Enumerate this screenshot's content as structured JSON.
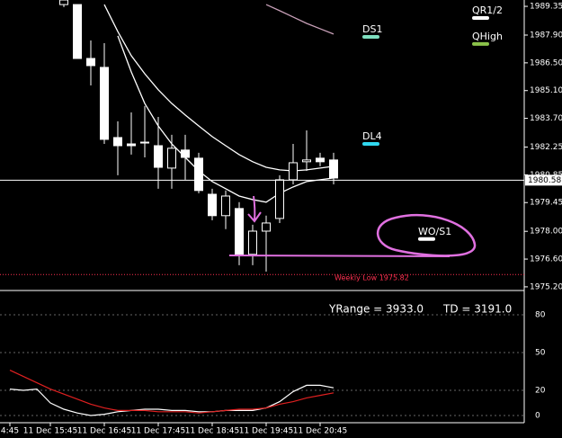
{
  "chart_data": [
    {
      "type": "candlestick",
      "open": [
        null,
        null,
        null,
        null,
        1989.44,
        1989.44,
        1986.72,
        1986.27,
        1982.73,
        1982.41,
        1982.5,
        1982.32,
        1981.19,
        1982.1,
        1981.69,
        1979.87,
        1978.79,
        1979.15,
        1976.84,
        1978.01,
        1978.65,
        1980.6,
        1981.51,
        1981.69,
        1981.6
      ],
      "high": [
        null,
        null,
        null,
        null,
        1989.67,
        1989.44,
        1987.63,
        1987.49,
        1983.55,
        1984.0,
        1984.32,
        1983.77,
        1982.87,
        1982.87,
        1981.96,
        1980.15,
        1980.06,
        1979.47,
        1978.33,
        1978.79,
        1980.83,
        1982.41,
        1983.09,
        1981.96,
        1981.96
      ],
      "low": [
        null,
        null,
        null,
        null,
        1989.31,
        1986.72,
        1985.36,
        1982.41,
        1980.83,
        1981.87,
        1981.73,
        1980.15,
        1980.15,
        1980.6,
        1979.92,
        1978.56,
        1978.11,
        1976.29,
        1976.29,
        1975.97,
        1978.42,
        1980.37,
        1981.05,
        1981.28,
        1980.37
      ],
      "close": [
        null,
        null,
        null,
        null,
        1989.67,
        1986.72,
        1986.36,
        1982.64,
        1982.32,
        1982.32,
        1982.46,
        1981.23,
        1982.19,
        1981.73,
        1980.06,
        1978.79,
        1979.78,
        1976.84,
        1978.01,
        1978.42,
        1980.6,
        1981.46,
        1981.6,
        1981.51,
        1980.69
      ],
      "series": [
        {
          "color": "#ffffff",
          "values": [
            null,
            null,
            null,
            null,
            null,
            null,
            null,
            1989.44,
            1988.08,
            1986.86,
            1985.95,
            1985.14,
            1984.45,
            1983.87,
            1983.32,
            1982.78,
            1982.32,
            1981.87,
            1981.51,
            1981.23,
            1981.1,
            1981.05,
            1981.1,
            1981.19,
            1981.28
          ]
        },
        {
          "color": "#ffffff",
          "values": [
            null,
            null,
            null,
            null,
            null,
            null,
            null,
            null,
            1987.86,
            1986.04,
            1984.45,
            1983.32,
            1982.41,
            1981.73,
            1981.05,
            1980.51,
            1980.15,
            1979.78,
            1979.6,
            1979.47,
            1979.92,
            1980.24,
            1980.51,
            1980.6,
            1980.69
          ]
        },
        {
          "color": "#c8a0b8",
          "values": [
            null,
            null,
            null,
            null,
            null,
            null,
            null,
            null,
            null,
            null,
            null,
            null,
            null,
            null,
            null,
            null,
            null,
            null,
            null,
            1989.44,
            1989.13,
            1988.81,
            1988.49,
            1988.22,
            1987.95
          ]
        }
      ],
      "ylim": [
        1975.06,
        1989.67
      ],
      "yticks": [
        1989.35,
        {
          "value": 1987.9,
          "label": "1987.90"
        },
        {
          "value": 1986.5,
          "label": "1986.50"
        },
        {
          "value": 1985.1,
          "label": "1985.10"
        },
        {
          "value": 1983.7,
          "label": "1983.70"
        },
        1982.25,
        1980.85,
        1979.45,
        {
          "value": 1978.0,
          "label": "1978.00"
        },
        {
          "value": 1976.6,
          "label": "1976.60"
        },
        {
          "value": 1975.2,
          "label": "1975.20"
        }
      ],
      "current_price": 1980.58,
      "weekly_low": {
        "value": 1975.82,
        "label": "Weekly Low 1975.82"
      },
      "levels": [
        {
          "name": "QR1/2",
          "value": 1988.76,
          "color": "#ffffff"
        },
        {
          "name": "QHigh",
          "value": 1987.45,
          "color": "#8bc34a"
        },
        {
          "name": "DS1",
          "value": 1987.81,
          "color": "#7fe0c0"
        },
        {
          "name": "DL4",
          "value": 1982.41,
          "color": "#30d8f0"
        },
        {
          "name": "WO/S1",
          "value": 1977.61,
          "color": "#ffffff"
        }
      ]
    },
    {
      "type": "line",
      "categories": [
        "4:45",
        null,
        null,
        "11 Dec 15:45",
        null,
        null,
        null,
        "11 Dec 16:45",
        null,
        null,
        null,
        "11 Dec 17:45",
        null,
        null,
        null,
        "11 Dec 18:45",
        null,
        null,
        null,
        "11 Dec 19:45",
        null,
        null,
        null,
        "11 Dec 20:45",
        null
      ],
      "series": [
        {
          "color": "#ffffff",
          "values": [
            21,
            20,
            21,
            10,
            5,
            2,
            0,
            1,
            3,
            4,
            5,
            5,
            4,
            4,
            3,
            3,
            4,
            4,
            4,
            6,
            11,
            19,
            24,
            24,
            22
          ]
        },
        {
          "color": "#e02020",
          "values": [
            36,
            31,
            26,
            21,
            17,
            13,
            9,
            6,
            4,
            4,
            4,
            3,
            3,
            3,
            2,
            3,
            4,
            5,
            5,
            6,
            9,
            11,
            14,
            16,
            18
          ]
        }
      ],
      "ylim": [
        0,
        100
      ],
      "yticks": [
        0,
        20,
        50,
        80
      ],
      "annotations": [
        "YRange = 3933.0",
        "TD = 3191.0"
      ]
    }
  ]
}
